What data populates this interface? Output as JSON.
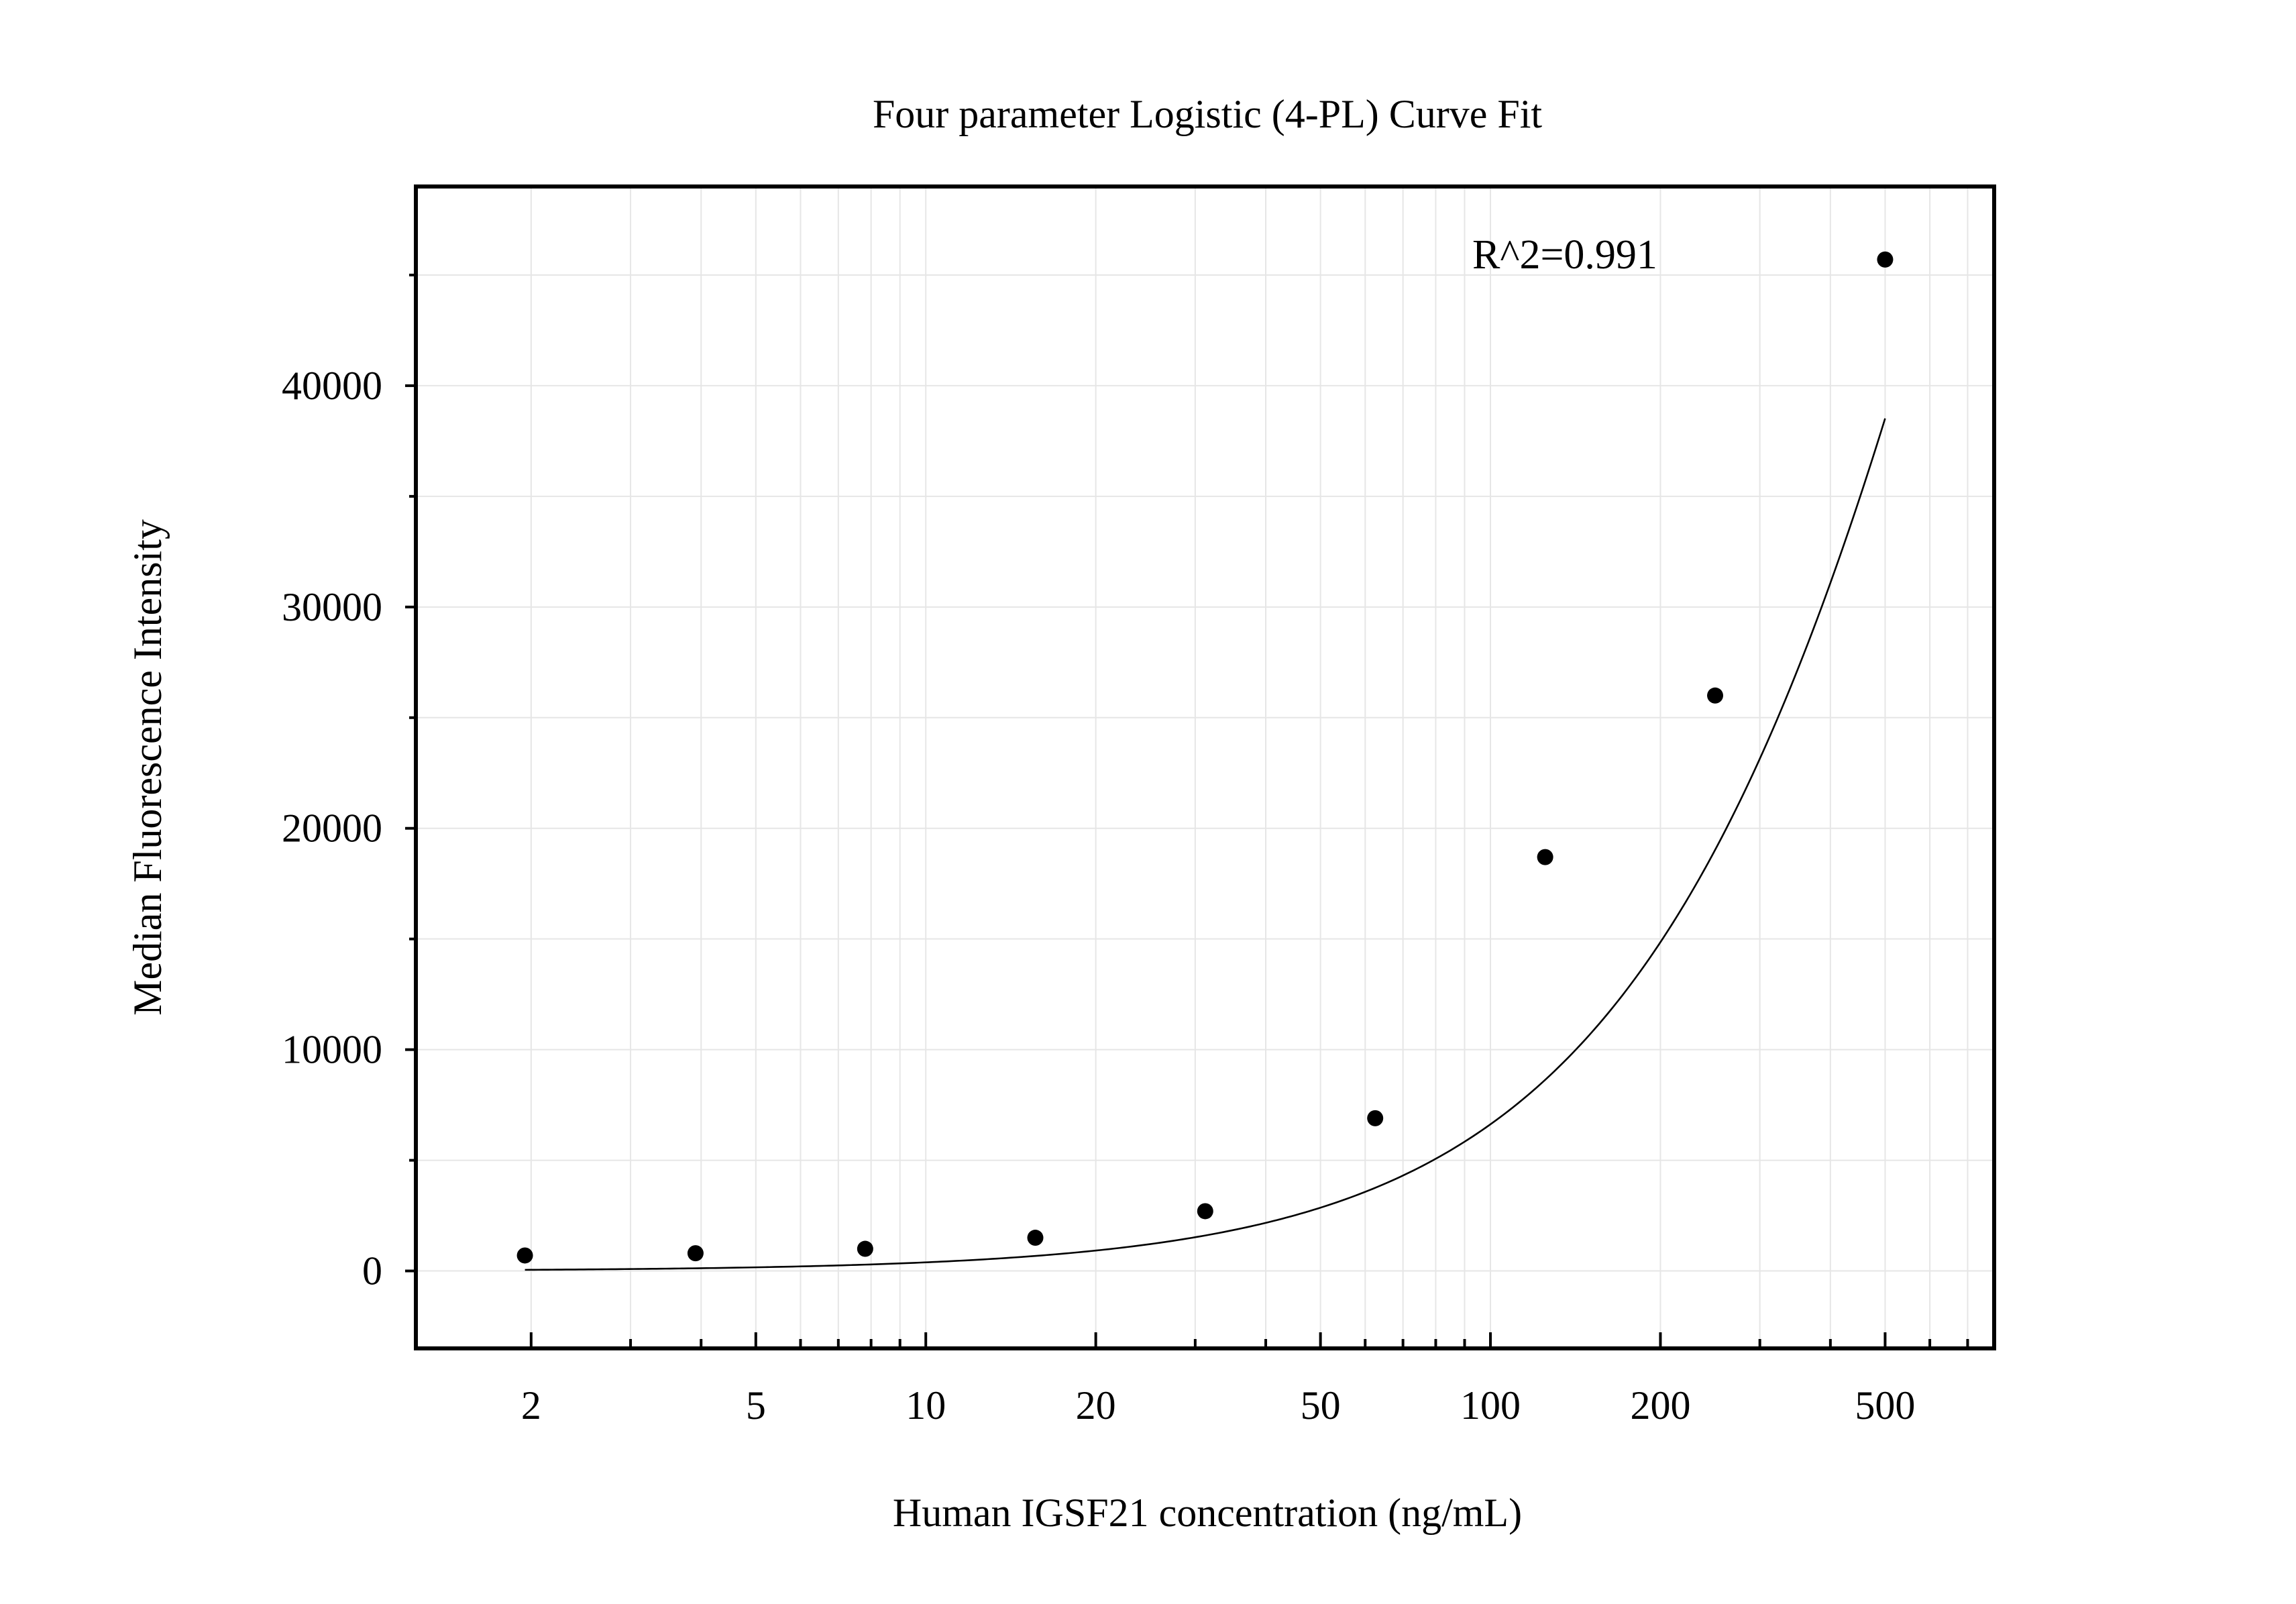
{
  "chart_data": {
    "type": "scatter",
    "title": "Four parameter Logistic (4-PL) Curve Fit",
    "xlabel": "Human IGSF21 concentration (ng/mL)",
    "ylabel": "Median Fluorescence Intensity",
    "x_scale": "log",
    "xlim": [
      1.25,
      780
    ],
    "ylim": [
      -3500,
      49000
    ],
    "x_tick_labels": [
      "2",
      "5",
      "10",
      "20",
      "50",
      "100",
      "200",
      "500"
    ],
    "x_tick_values": [
      2,
      5,
      10,
      20,
      50,
      100,
      200,
      500
    ],
    "y_tick_labels": [
      "0",
      "10000",
      "20000",
      "30000",
      "40000"
    ],
    "y_tick_values": [
      0,
      10000,
      20000,
      30000,
      40000
    ],
    "grid": true,
    "annotation": "R^2=0.991",
    "points": [
      {
        "x": 1.95,
        "y": 700
      },
      {
        "x": 3.91,
        "y": 800
      },
      {
        "x": 7.81,
        "y": 1000
      },
      {
        "x": 15.63,
        "y": 1500
      },
      {
        "x": 31.25,
        "y": 2700
      },
      {
        "x": 62.5,
        "y": 6900
      },
      {
        "x": 125,
        "y": 18700
      },
      {
        "x": 250,
        "y": 26000
      },
      {
        "x": 500,
        "y": 45700
      }
    ],
    "fit_curve": {
      "type": "4PL",
      "x_range": [
        1.95,
        500
      ],
      "bottom": 0,
      "top": 150000,
      "ec50": 1170,
      "hill": 1.25
    }
  }
}
